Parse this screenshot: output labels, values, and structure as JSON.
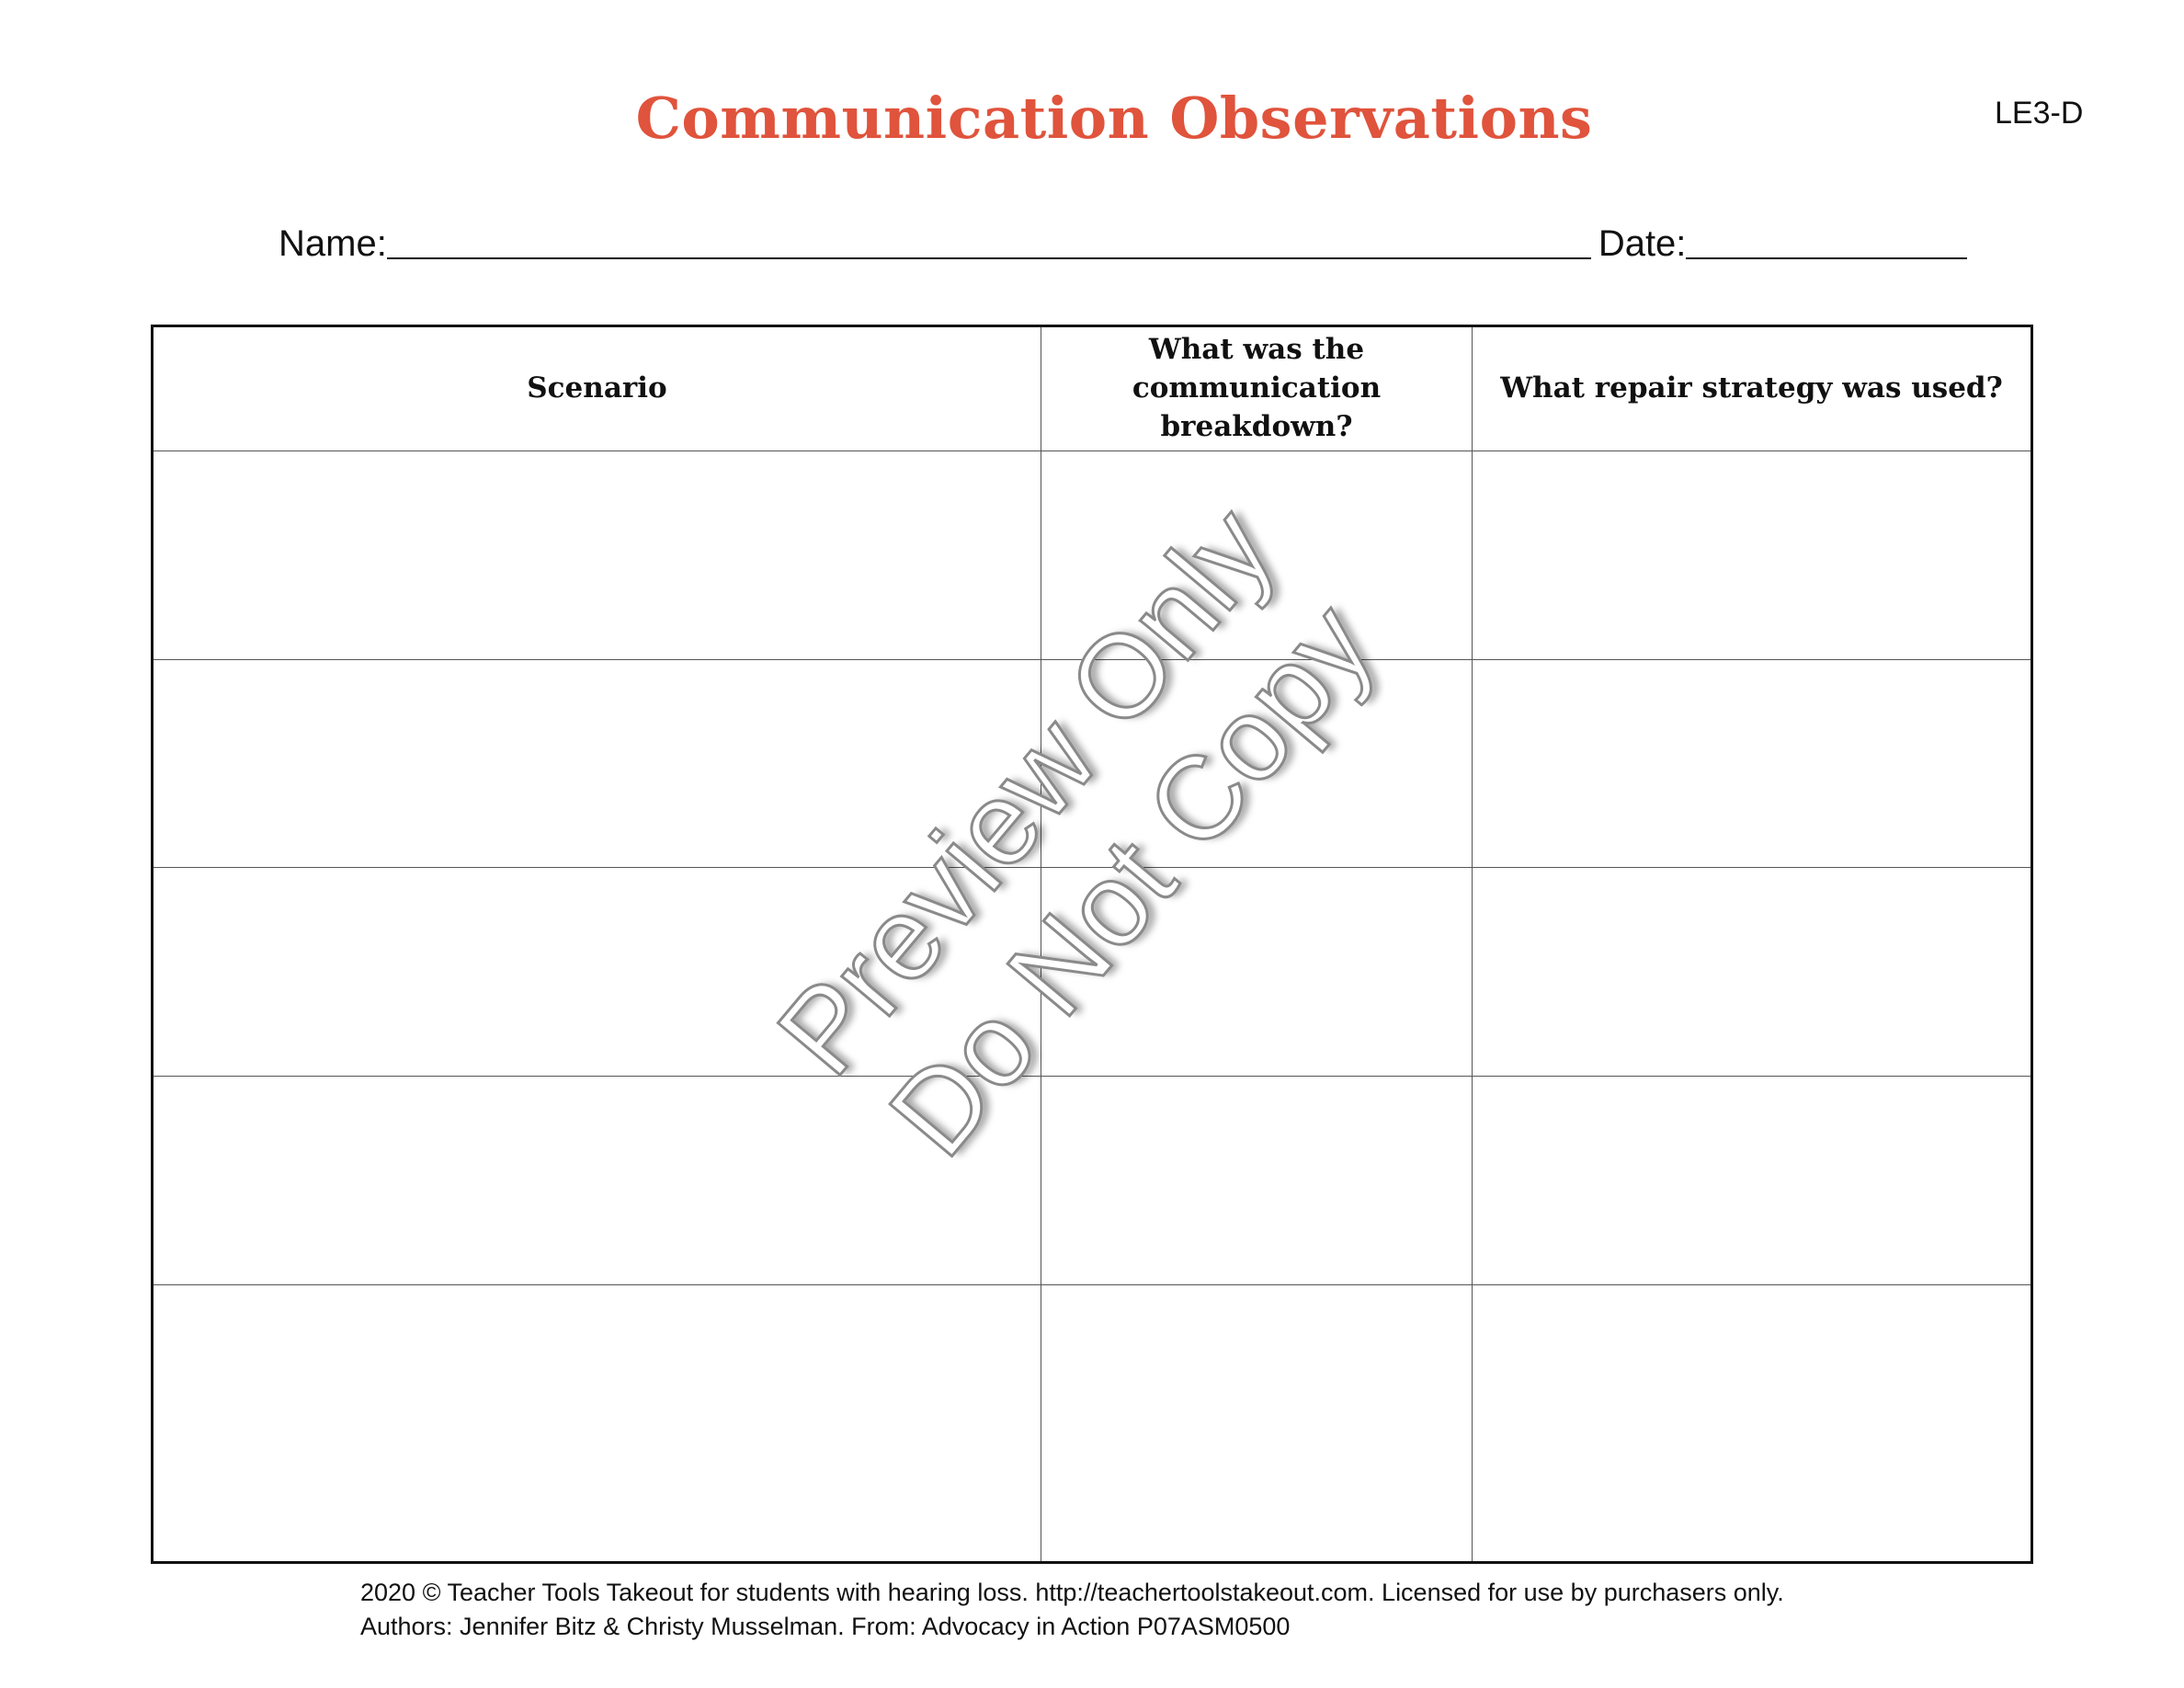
{
  "header": {
    "title": "Communication Observations",
    "code": "LE3-D"
  },
  "fields": {
    "name_label": "Name:",
    "date_label": "Date:"
  },
  "table": {
    "columns": [
      "Scenario",
      "What was the communication breakdown?",
      "What repair strategy was used?"
    ],
    "row_count": 5
  },
  "watermark": {
    "line1": "Preview Only",
    "line2": "Do Not Copy"
  },
  "footer": {
    "line1": "2020 © Teacher Tools Takeout for students with hearing loss. http://teachertoolstakeout.com. Licensed for use by purchasers only.",
    "line2": "Authors: Jennifer Bitz & Christy Musselman. From: Advocacy in Action P07ASM0500"
  },
  "colors": {
    "title": "#e0533c"
  }
}
